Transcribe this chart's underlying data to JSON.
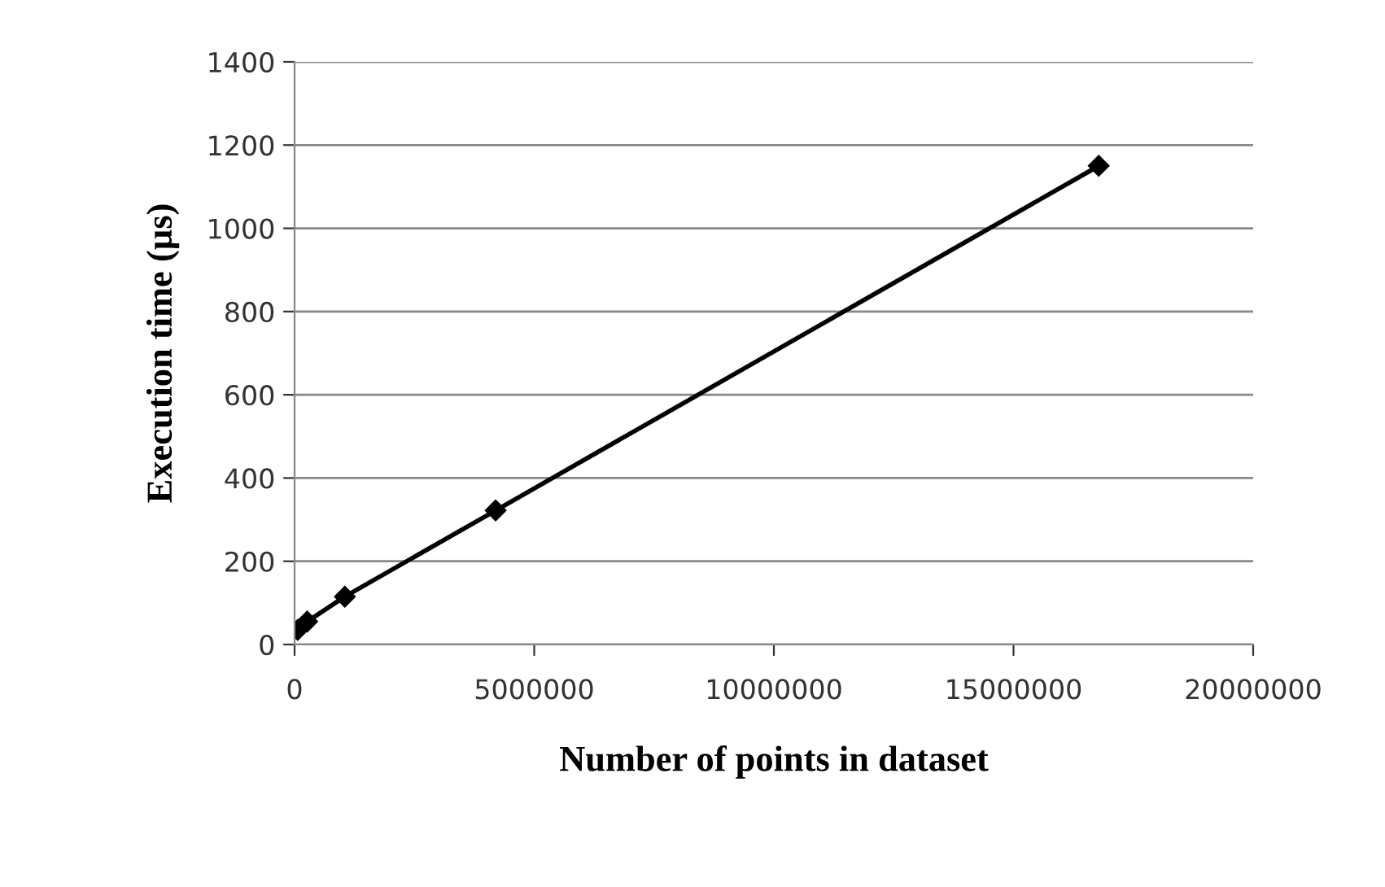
{
  "chart_data": {
    "type": "line",
    "xlabel": "Number of points in dataset",
    "ylabel": "Execution time (µs)",
    "x": [
      65536,
      262144,
      1048576,
      4194304,
      16777216
    ],
    "series": [
      {
        "color": "#000000",
        "values": [
          35,
          55,
          115,
          322,
          1150
        ]
      }
    ],
    "xlim": [
      0,
      20000000
    ],
    "xticks": [
      0,
      5000000,
      10000000,
      15000000,
      20000000
    ],
    "ylim": [
      0,
      1400
    ],
    "yticks": [
      0,
      200,
      400,
      600,
      800,
      1000,
      1200,
      1400
    ],
    "grid": "y",
    "marker": "diamond",
    "line_style": "solid"
  }
}
